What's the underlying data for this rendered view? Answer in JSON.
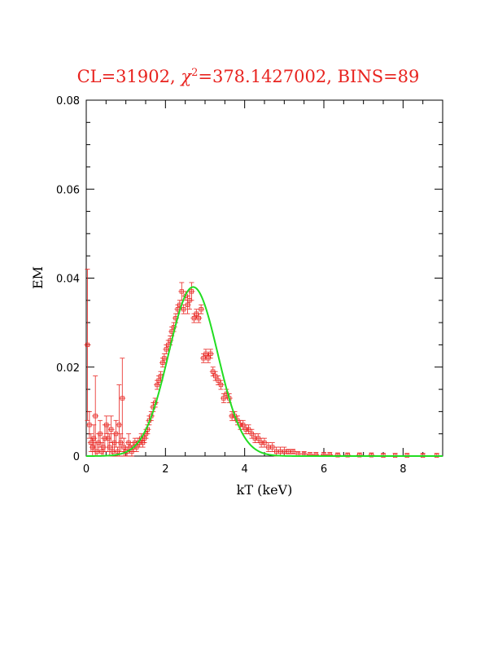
{
  "chart_data": {
    "type": "scatter",
    "title_parts": {
      "prefix": "CL=31902, ",
      "chi": "χ",
      "exp": "2",
      "suffix": "=378.1427002, BINS=89"
    },
    "xlabel": "kT (keV)",
    "ylabel": "EM",
    "xlim": [
      0,
      9
    ],
    "ylim": [
      0,
      0.08
    ],
    "x_ticks": [
      0,
      2,
      4,
      6,
      8
    ],
    "x_tick_labels": [
      "0",
      "2",
      "4",
      "6",
      "8"
    ],
    "y_ticks": [
      0,
      0.02,
      0.04,
      0.06,
      0.08
    ],
    "y_tick_labels": [
      "0",
      "0.02",
      "0.04",
      "0.06",
      "0.08"
    ],
    "grid": false,
    "colors": {
      "data": "#e8231f",
      "model": "#22dd22",
      "title": "#e8231f",
      "axes": "#000000"
    },
    "series": [
      {
        "role": "data",
        "marker": "open-square-with-errorbars",
        "points": [
          [
            0.03,
            0.025,
            0.017
          ],
          [
            0.08,
            0.007,
            0.003
          ],
          [
            0.12,
            0.003,
            0.002
          ],
          [
            0.16,
            0.002,
            0.002
          ],
          [
            0.19,
            0.004,
            0.003
          ],
          [
            0.23,
            0.009,
            0.009
          ],
          [
            0.27,
            0.001,
            0.002
          ],
          [
            0.31,
            0.003,
            0.002
          ],
          [
            0.35,
            0.005,
            0.003
          ],
          [
            0.39,
            0.001,
            0.002
          ],
          [
            0.43,
            0.002,
            0.002
          ],
          [
            0.47,
            0.004,
            0.003
          ],
          [
            0.51,
            0.007,
            0.002
          ],
          [
            0.55,
            0.004,
            0.003
          ],
          [
            0.59,
            0.002,
            0.003
          ],
          [
            0.63,
            0.006,
            0.003
          ],
          [
            0.67,
            0.001,
            0.002
          ],
          [
            0.71,
            0.003,
            0.002
          ],
          [
            0.75,
            0.005,
            0.003
          ],
          [
            0.79,
            0.001,
            0.001
          ],
          [
            0.83,
            0.007,
            0.009
          ],
          [
            0.87,
            0.003,
            0.002
          ],
          [
            0.91,
            0.013,
            0.009
          ],
          [
            0.95,
            0.002,
            0.002
          ],
          [
            0.99,
            0.001,
            0.001
          ],
          [
            1.03,
            0.001,
            0.001
          ],
          [
            1.07,
            0.003,
            0.002
          ],
          [
            1.11,
            0.002,
            0.001
          ],
          [
            1.15,
            0.001,
            0.001
          ],
          [
            1.19,
            0.002,
            0.001
          ],
          [
            1.23,
            0.003,
            0.001
          ],
          [
            1.27,
            0.002,
            0.001
          ],
          [
            1.31,
            0.003,
            0.001
          ],
          [
            1.35,
            0.003,
            0.001
          ],
          [
            1.39,
            0.004,
            0.001
          ],
          [
            1.43,
            0.003,
            0.001
          ],
          [
            1.47,
            0.004,
            0.001
          ],
          [
            1.51,
            0.005,
            0.001
          ],
          [
            1.55,
            0.006,
            0.001
          ],
          [
            1.59,
            0.008,
            0.001
          ],
          [
            1.64,
            0.009,
            0.001
          ],
          [
            1.69,
            0.011,
            0.001
          ],
          [
            1.74,
            0.012,
            0.001
          ],
          [
            1.79,
            0.016,
            0.001
          ],
          [
            1.83,
            0.017,
            0.001
          ],
          [
            1.88,
            0.018,
            0.001
          ],
          [
            1.93,
            0.021,
            0.001
          ],
          [
            1.97,
            0.022,
            0.001
          ],
          [
            2.02,
            0.024,
            0.001
          ],
          [
            2.07,
            0.025,
            0.001
          ],
          [
            2.12,
            0.026,
            0.001
          ],
          [
            2.16,
            0.028,
            0.001
          ],
          [
            2.21,
            0.029,
            0.001
          ],
          [
            2.26,
            0.031,
            0.001
          ],
          [
            2.31,
            0.033,
            0.001
          ],
          [
            2.36,
            0.034,
            0.001
          ],
          [
            2.41,
            0.037,
            0.002
          ],
          [
            2.46,
            0.033,
            0.001
          ],
          [
            2.51,
            0.036,
            0.001
          ],
          [
            2.56,
            0.034,
            0.002
          ],
          [
            2.61,
            0.035,
            0.002
          ],
          [
            2.66,
            0.037,
            0.002
          ],
          [
            2.72,
            0.031,
            0.001
          ],
          [
            2.78,
            0.032,
            0.001
          ],
          [
            2.84,
            0.031,
            0.001
          ],
          [
            2.9,
            0.033,
            0.001
          ],
          [
            2.96,
            0.022,
            0.001
          ],
          [
            3.02,
            0.023,
            0.001
          ],
          [
            3.08,
            0.022,
            0.001
          ],
          [
            3.14,
            0.023,
            0.001
          ],
          [
            3.2,
            0.019,
            0.001
          ],
          [
            3.26,
            0.018,
            0.001
          ],
          [
            3.33,
            0.017,
            0.001
          ],
          [
            3.4,
            0.016,
            0.001
          ],
          [
            3.47,
            0.013,
            0.001
          ],
          [
            3.54,
            0.014,
            0.001
          ],
          [
            3.61,
            0.013,
            0.001
          ],
          [
            3.68,
            0.009,
            0.001
          ],
          [
            3.75,
            0.009,
            0.001
          ],
          [
            3.82,
            0.008,
            0.001
          ],
          [
            3.89,
            0.007,
            0.001
          ],
          [
            3.96,
            0.007,
            0.001
          ],
          [
            4.03,
            0.006,
            0.001
          ],
          [
            4.1,
            0.006,
            0.001
          ],
          [
            4.18,
            0.005,
            0.001
          ],
          [
            4.26,
            0.004,
            0.001
          ],
          [
            4.34,
            0.004,
            0.001
          ],
          [
            4.42,
            0.003,
            0.001
          ],
          [
            4.5,
            0.003,
            0.001
          ],
          [
            4.6,
            0.002,
            0.001
          ],
          [
            4.7,
            0.002,
            0.001
          ],
          [
            4.8,
            0.001,
            0.001
          ],
          [
            4.9,
            0.001,
            0.001
          ],
          [
            5.0,
            0.001,
            0.001
          ],
          [
            5.1,
            0.001,
            0.0005
          ],
          [
            5.22,
            0.001,
            0.0005
          ],
          [
            5.35,
            0.0005,
            0.0005
          ],
          [
            5.5,
            0.0005,
            0.0005
          ],
          [
            5.65,
            0.0003,
            0.0005
          ],
          [
            5.8,
            0.0003,
            0.0005
          ],
          [
            6.0,
            0.0003,
            0.0005
          ],
          [
            6.15,
            0.0003,
            0.0005
          ],
          [
            6.35,
            0.0002,
            0.0005
          ],
          [
            6.6,
            0.0002,
            0.0005
          ],
          [
            6.9,
            0.0002,
            0.0005
          ],
          [
            7.2,
            0.0002,
            0.0005
          ],
          [
            7.5,
            0.0001,
            0.0005
          ],
          [
            7.8,
            0.0001,
            0.0005
          ],
          [
            8.1,
            0.0001,
            0.0005
          ],
          [
            8.5,
            0.0001,
            0.0005
          ],
          [
            8.85,
            0.0001,
            0.0005
          ]
        ]
      },
      {
        "role": "model",
        "marker": "line",
        "peak_x": 2.7,
        "peak_y": 0.038,
        "sigma_x": 0.62
      }
    ]
  }
}
